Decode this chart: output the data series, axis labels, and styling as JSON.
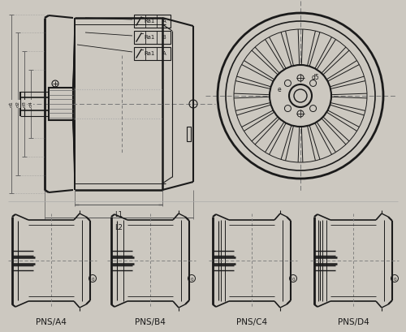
{
  "bg_color": "#ccc8c0",
  "line_color": "#1a1a1a",
  "labels": [
    "PNS/A4",
    "PNS/B4",
    "PNS/C4",
    "PNS/D4"
  ],
  "figsize": [
    5.0,
    4.09
  ],
  "dpi": 100
}
